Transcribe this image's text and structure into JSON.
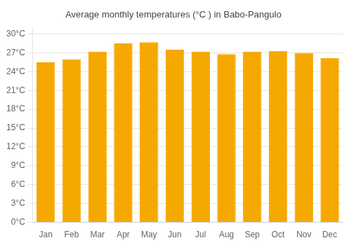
{
  "chart_data": {
    "type": "bar",
    "title": "Average monthly temperatures (°C ) in Babo-Pangulo",
    "categories": [
      "Jan",
      "Feb",
      "Mar",
      "Apr",
      "May",
      "Jun",
      "Jul",
      "Aug",
      "Sep",
      "Oct",
      "Nov",
      "Dec"
    ],
    "values": [
      25.5,
      26.0,
      27.2,
      28.5,
      28.7,
      27.5,
      27.2,
      26.8,
      27.2,
      27.3,
      27.0,
      26.2
    ],
    "color": "#F5A800",
    "ylim": [
      0,
      31
    ],
    "yticks": [
      {
        "value": 0,
        "label": "0°C"
      },
      {
        "value": 3,
        "label": "3°C"
      },
      {
        "value": 6,
        "label": "6°C"
      },
      {
        "value": 9,
        "label": "9°C"
      },
      {
        "value": 12,
        "label": "12°C"
      },
      {
        "value": 15,
        "label": "15°C"
      },
      {
        "value": 18,
        "label": "18°C"
      },
      {
        "value": 21,
        "label": "21°C"
      },
      {
        "value": 24,
        "label": "24°C"
      },
      {
        "value": 27,
        "label": "27°C"
      },
      {
        "value": 30,
        "label": "30°C"
      }
    ],
    "grid": true
  }
}
